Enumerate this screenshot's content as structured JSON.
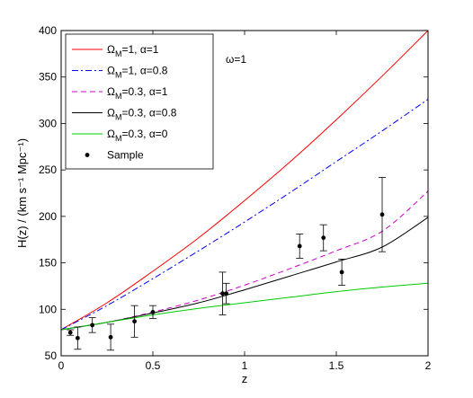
{
  "chart_data": {
    "type": "line",
    "xlabel": "z",
    "ylabel": "H(z) / (km s⁻¹ Mpc⁻¹)",
    "xlim": [
      0,
      2
    ],
    "ylim": [
      50,
      400
    ],
    "xticks": [
      "0",
      "0.5",
      "1",
      "1.5",
      "2"
    ],
    "yticks": [
      "50",
      "100",
      "150",
      "200",
      "250",
      "300",
      "350",
      "400"
    ],
    "annotation": "ω=1",
    "grid": false,
    "legend_position": "top-left",
    "series": [
      {
        "name": "ΩM=1, α=1",
        "label_main": "Ω",
        "label_sub": "M",
        "label_rest": "=1, α=1",
        "color": "#ff0000",
        "dash": "solid",
        "x": [
          0,
          0.25,
          0.5,
          0.75,
          1.0,
          1.25,
          1.5,
          1.75,
          2.0
        ],
        "y": [
          78,
          107,
          141,
          177,
          217,
          259,
          304,
          351,
          400
        ]
      },
      {
        "name": "ΩM=1, α=0.8",
        "label_main": "Ω",
        "label_sub": "M",
        "label_rest": "=1, α=0.8",
        "color": "#0000ff",
        "dash": "dashdot",
        "x": [
          0,
          0.25,
          0.5,
          0.75,
          1.0,
          1.25,
          1.5,
          1.75,
          2.0
        ],
        "y": [
          78,
          104,
          133,
          163,
          194,
          226,
          259,
          292,
          326
        ]
      },
      {
        "name": "ΩM=0.3, α=1",
        "label_main": "Ω",
        "label_sub": "M",
        "label_rest": "=0.3, α=1",
        "color": "#cc00cc",
        "dash": "dashed",
        "x": [
          0,
          0.25,
          0.5,
          0.75,
          1.0,
          1.25,
          1.5,
          1.75,
          2.0
        ],
        "y": [
          78,
          86,
          97,
          110,
          126,
          144,
          163,
          184,
          227
        ]
      },
      {
        "name": "ΩM=0.3, α=0.8",
        "label_main": "Ω",
        "label_sub": "M",
        "label_rest": "=0.3, α=0.8",
        "color": "#000000",
        "dash": "solid",
        "x": [
          0,
          0.25,
          0.5,
          0.75,
          1.0,
          1.25,
          1.5,
          1.75,
          2.0
        ],
        "y": [
          78,
          86,
          96,
          107,
          121,
          136,
          151,
          167,
          199
        ]
      },
      {
        "name": "ΩM=0.3, α=0",
        "label_main": "Ω",
        "label_sub": "M",
        "label_rest": "=0.3, α=0",
        "color": "#00cc00",
        "dash": "solid",
        "x": [
          0,
          0.25,
          0.5,
          0.75,
          1.0,
          1.25,
          1.5,
          1.75,
          2.0
        ],
        "y": [
          78,
          86,
          94,
          101,
          107,
          113,
          119,
          124,
          128
        ]
      }
    ],
    "sample": {
      "name": "Sample",
      "color": "#000000",
      "points": [
        {
          "x": 0.05,
          "y": 75,
          "err": 3
        },
        {
          "x": 0.09,
          "y": 69,
          "err": 12
        },
        {
          "x": 0.17,
          "y": 83,
          "err": 8
        },
        {
          "x": 0.27,
          "y": 70,
          "err": 14
        },
        {
          "x": 0.4,
          "y": 87,
          "err": 17
        },
        {
          "x": 0.5,
          "y": 97,
          "err": 7
        },
        {
          "x": 0.88,
          "y": 117,
          "err": 23
        },
        {
          "x": 0.9,
          "y": 117,
          "err": 11
        },
        {
          "x": 1.3,
          "y": 168,
          "err": 13
        },
        {
          "x": 1.43,
          "y": 177,
          "err": 14
        },
        {
          "x": 1.53,
          "y": 140,
          "err": 14
        },
        {
          "x": 1.75,
          "y": 202,
          "err": 40
        }
      ]
    }
  }
}
